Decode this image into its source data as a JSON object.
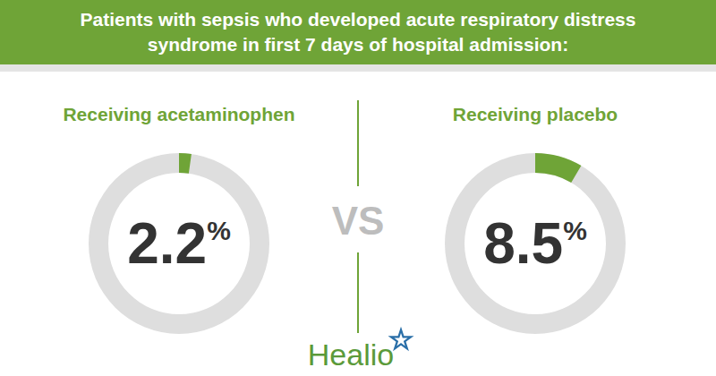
{
  "chart_data": {
    "type": "donut",
    "title": "Patients with sepsis who developed acute respiratory distress syndrome in first 7 days of hospital admission:",
    "categories": [
      "Receiving acetaminophen",
      "Receiving placebo"
    ],
    "values": [
      2.2,
      8.5
    ],
    "value_labels": [
      "2.2%",
      "8.5%"
    ],
    "ylim": [
      0,
      100
    ],
    "color": "#6fa437",
    "annotations": [
      "VS",
      "Healio"
    ]
  }
}
